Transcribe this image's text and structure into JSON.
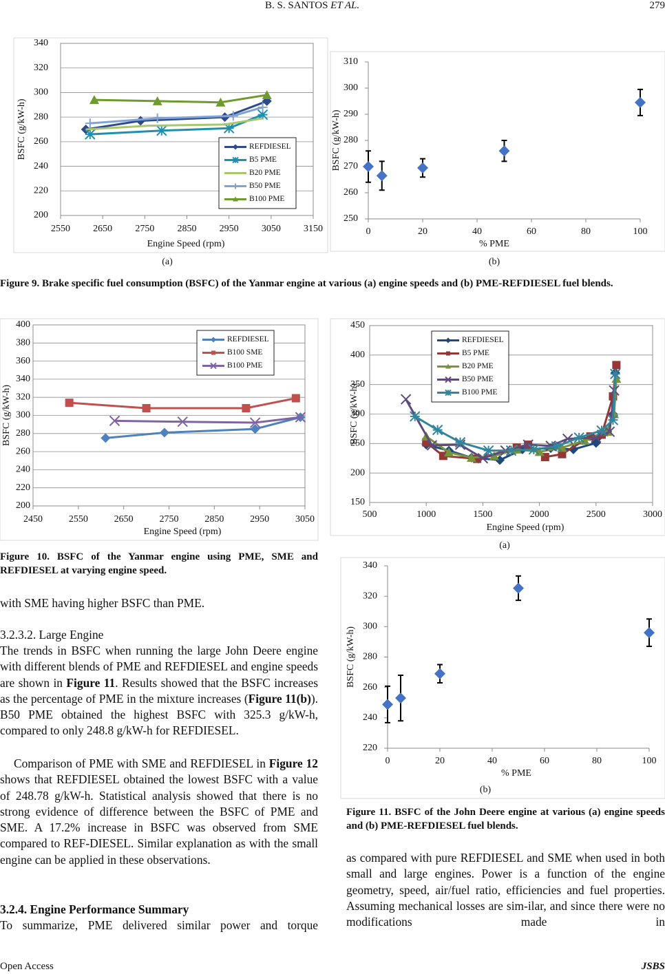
{
  "header": {
    "authors": "B. S. SANTOS",
    "etal": "ET AL.",
    "page": "279"
  },
  "chart_data": [
    {
      "type": "line",
      "panel_label": "(a)",
      "x_label": "Engine Speed (rpm)",
      "y_label": "BSFC (g/kW-h)",
      "xlim": [
        2550,
        3150
      ],
      "xticks": [
        2550,
        2650,
        2750,
        2850,
        2950,
        3050,
        3150
      ],
      "ylim": [
        200,
        340
      ],
      "yticks": [
        200,
        220,
        240,
        260,
        280,
        300,
        320,
        340
      ],
      "grid": true,
      "legend": "lower right",
      "series": [
        {
          "name": "REFDIESEL",
          "color": "#2e4a8c",
          "marker": "diamond",
          "x": [
            2610,
            2740,
            2940,
            3040
          ],
          "values": [
            270,
            277,
            280,
            293
          ]
        },
        {
          "name": "B5 PME",
          "color": "#1f8fb0",
          "marker": "asterisk",
          "x": [
            2620,
            2790,
            2950,
            3030
          ],
          "values": [
            266,
            269,
            271,
            282
          ]
        },
        {
          "name": "B20 PME",
          "color": "#a6c86a",
          "marker": "none",
          "x": [
            2610,
            2760,
            2940,
            3030
          ],
          "values": [
            270,
            273,
            274,
            279
          ]
        },
        {
          "name": "B50 PME",
          "color": "#7fa3d6",
          "marker": "plus",
          "x": [
            2620,
            2780,
            2960,
            3030
          ],
          "values": [
            275,
            279,
            281,
            288
          ]
        },
        {
          "name": "B100 PME",
          "color": "#6f9a2e",
          "marker": "triangle",
          "x": [
            2630,
            2780,
            2930,
            3040
          ],
          "values": [
            294,
            293,
            292,
            298
          ]
        }
      ]
    },
    {
      "type": "errorscatter",
      "panel_label": "(b)",
      "x_label": "% PME",
      "y_label": "BSFC (g/kW-h)",
      "xlim": [
        0,
        100
      ],
      "xticks": [
        0,
        20,
        40,
        60,
        80,
        100
      ],
      "ylim": [
        250,
        310
      ],
      "yticks": [
        250,
        260,
        270,
        280,
        290,
        300,
        310
      ],
      "grid": false,
      "color": "#4472c4",
      "x": [
        0,
        5,
        20,
        50,
        100
      ],
      "values": [
        270,
        266.5,
        269.5,
        276,
        294.5
      ],
      "errors": [
        6,
        5.5,
        3.5,
        4,
        5
      ]
    },
    {
      "type": "line",
      "x_label": "Engine Speed (rpm)",
      "y_label": "BSFC (g/kW-h)",
      "xlim": [
        2450,
        3050
      ],
      "xticks": [
        2450,
        2550,
        2650,
        2750,
        2850,
        2950,
        3050
      ],
      "ylim": [
        200,
        400
      ],
      "yticks": [
        200,
        220,
        240,
        260,
        280,
        300,
        320,
        340,
        360,
        380,
        400
      ],
      "grid": true,
      "legend": "upper right",
      "series": [
        {
          "name": "REFDIESEL",
          "color": "#4f81bd",
          "marker": "diamond",
          "x": [
            2610,
            2740,
            2940,
            3040
          ],
          "values": [
            275,
            281,
            285,
            298
          ]
        },
        {
          "name": "B100 SME",
          "color": "#c0504d",
          "marker": "square",
          "x": [
            2530,
            2700,
            2920,
            3030
          ],
          "values": [
            314,
            308,
            308,
            319
          ]
        },
        {
          "name": "B100 PME",
          "color": "#8064a2",
          "marker": "x",
          "x": [
            2630,
            2780,
            2940,
            3040
          ],
          "values": [
            294,
            293,
            292,
            298
          ]
        }
      ]
    },
    {
      "type": "line",
      "panel_label": "(a)",
      "x_label": "Engine Speed (rpm)",
      "y_label": "BSFC (g/kW-h)",
      "xlim": [
        500,
        3000
      ],
      "xticks": [
        500,
        1000,
        1500,
        2000,
        2500,
        3000
      ],
      "ylim": [
        150,
        450
      ],
      "yticks": [
        150,
        200,
        250,
        300,
        350,
        400,
        450
      ],
      "grid": true,
      "legend": "upper left",
      "series": [
        {
          "name": "REFDIESEL",
          "color": "#1f497d",
          "marker": "diamond",
          "x": [
            1000,
            1200,
            1400,
            1650,
            1850,
            2100,
            2300,
            2500,
            2600,
            2650,
            2670
          ],
          "values": [
            248,
            238,
            226,
            222,
            240,
            242,
            240,
            251,
            270,
            300,
            370
          ]
        },
        {
          "name": "B5 PME",
          "color": "#953735",
          "marker": "square",
          "x": [
            1000,
            1150,
            1450,
            1800,
            1900,
            2050,
            2200,
            2450,
            2550,
            2650,
            2680
          ],
          "values": [
            252,
            229,
            224,
            243,
            248,
            227,
            232,
            262,
            265,
            330,
            383
          ]
        },
        {
          "name": "B20 PME",
          "color": "#77933c",
          "marker": "triangle",
          "x": [
            1000,
            1200,
            1400,
            1600,
            1800,
            2000,
            2200,
            2400,
            2600,
            2660,
            2680
          ],
          "values": [
            262,
            235,
            226,
            229,
            240,
            236,
            243,
            255,
            270,
            300,
            360
          ]
        },
        {
          "name": "B50 PME",
          "color": "#5f497a",
          "marker": "x",
          "x": [
            820,
            1050,
            1300,
            1500,
            1700,
            1900,
            2100,
            2250,
            2500,
            2620,
            2660
          ],
          "values": [
            325,
            247,
            248,
            225,
            238,
            248,
            246,
            258,
            260,
            270,
            340
          ]
        },
        {
          "name": "B100 PME",
          "color": "#31859c",
          "marker": "asterisk",
          "x": [
            900,
            1100,
            1300,
            1550,
            1750,
            1950,
            2150,
            2350,
            2550,
            2650,
            2670
          ],
          "values": [
            296,
            273,
            252,
            238,
            238,
            240,
            245,
            260,
            272,
            290,
            368
          ]
        }
      ]
    },
    {
      "type": "errorscatter",
      "panel_label": "(b)",
      "x_label": "% PME",
      "y_label": "BSFC (g/kW-h)",
      "xlim": [
        0,
        100
      ],
      "xticks": [
        0,
        20,
        40,
        60,
        80,
        100
      ],
      "ylim": [
        220,
        340
      ],
      "yticks": [
        220,
        240,
        260,
        280,
        300,
        320,
        340
      ],
      "grid": false,
      "color": "#4472c4",
      "x": [
        0,
        5,
        20,
        50,
        100
      ],
      "values": [
        248.8,
        253,
        269,
        325.3,
        296
      ],
      "errors": [
        12,
        15,
        6,
        8,
        9
      ]
    }
  ],
  "captions": {
    "figure9": "Figure 9. Brake specific fuel consumption (BSFC) of the Yanmar engine at various (a) engine speeds and (b) PME-REFDIESEL fuel blends.",
    "figure10": "Figure 10. BSFC of the Yanmar engine using PME, SME and REFDIESEL at varying engine speed.",
    "figure11": "Figure 11. BSFC of the John Deere engine at various (a) engine speeds and (b) PME-REFDIESEL fuel blends."
  },
  "body": {
    "line1": "with SME having higher BSFC than PME.",
    "heading1": "3.2.3.2. Large Engine",
    "para1": [
      "The trends in BSFC when running the large John Deere engine with different blends of PME and REFDIESEL and engine speeds are shown in ",
      "Figure 11",
      ". Results showed that the BSFC increases as the percentage of PME in the mixture increases (",
      "Figure 11(b)",
      "). B50 PME obtained the highest BSFC with 325.3 g/kW-h, compared to only 248.8 g/kW-h for REFDIESEL."
    ],
    "para2": [
      "Comparison of PME with SME and REFDIESEL in ",
      "Figure 12",
      " shows that REFDIESEL obtained the lowest BSFC with a value of 248.78 g/kW-h. Statistical analysis showed that there is no strong evidence of difference between the BSFC of PME and SME. A 17.2% increase in BSFC was observed from SME compared to REF-DIESEL. Similar explanation as with the small engine can be applied in these observations."
    ],
    "heading2": "3.2.4. Engine Performance Summary",
    "para3": "To summarize, PME delivered similar power and torque",
    "right_para": "as compared with pure REFDIESEL and SME when used in both small and large engines. Power is a function of the engine geometry, speed, air/fuel ratio, efficiencies and fuel properties. Assuming mechanical losses are sim-ilar, and since there were no modifications made in"
  },
  "footer": {
    "left": "Open Access",
    "right": "JSBS"
  }
}
